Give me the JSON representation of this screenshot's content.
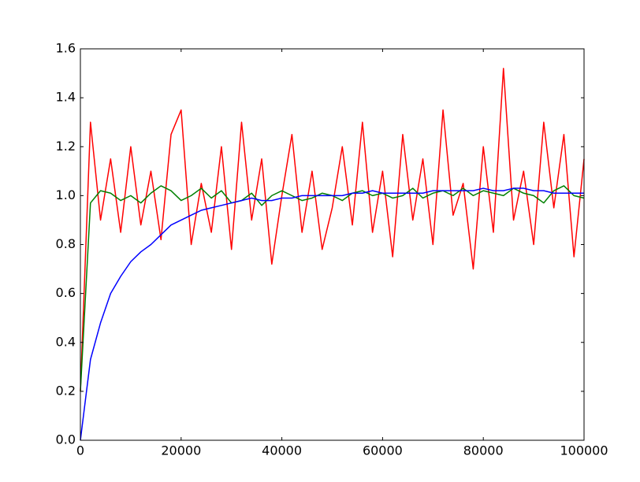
{
  "chart_data": {
    "type": "line",
    "x": [
      0,
      2000,
      4000,
      6000,
      8000,
      10000,
      12000,
      14000,
      16000,
      18000,
      20000,
      22000,
      24000,
      26000,
      28000,
      30000,
      32000,
      34000,
      36000,
      38000,
      40000,
      42000,
      44000,
      46000,
      48000,
      50000,
      52000,
      54000,
      56000,
      58000,
      60000,
      62000,
      64000,
      66000,
      68000,
      70000,
      72000,
      74000,
      76000,
      78000,
      80000,
      82000,
      84000,
      86000,
      88000,
      90000,
      92000,
      94000,
      96000,
      98000,
      100000
    ],
    "series": [
      {
        "color": "#ff0000",
        "values": [
          0.2,
          1.3,
          0.9,
          1.15,
          0.85,
          1.2,
          0.88,
          1.1,
          0.82,
          1.25,
          1.35,
          0.8,
          1.05,
          0.85,
          1.2,
          0.78,
          1.3,
          0.9,
          1.15,
          0.72,
          1.0,
          1.25,
          0.85,
          1.1,
          0.78,
          0.95,
          1.2,
          0.88,
          1.3,
          0.85,
          1.1,
          0.75,
          1.25,
          0.9,
          1.15,
          0.8,
          1.35,
          0.92,
          1.05,
          0.7,
          1.2,
          0.85,
          1.52,
          0.9,
          1.1,
          0.8,
          1.3,
          0.95,
          1.25,
          0.75,
          1.15
        ]
      },
      {
        "color": "#008000",
        "values": [
          0.2,
          0.97,
          1.02,
          1.01,
          0.98,
          1.0,
          0.97,
          1.01,
          1.04,
          1.02,
          0.98,
          1.0,
          1.03,
          0.99,
          1.02,
          0.97,
          0.98,
          1.01,
          0.96,
          1.0,
          1.02,
          1.0,
          0.98,
          0.99,
          1.01,
          1.0,
          0.98,
          1.01,
          1.02,
          1.0,
          1.01,
          0.99,
          1.0,
          1.03,
          0.99,
          1.01,
          1.02,
          1.0,
          1.03,
          1.0,
          1.02,
          1.01,
          1.0,
          1.03,
          1.01,
          1.0,
          0.97,
          1.02,
          1.04,
          1.0,
          0.99
        ]
      },
      {
        "color": "#0000ff",
        "values": [
          0,
          0.33,
          0.48,
          0.6,
          0.67,
          0.73,
          0.77,
          0.8,
          0.84,
          0.88,
          0.9,
          0.92,
          0.94,
          0.95,
          0.96,
          0.97,
          0.98,
          0.99,
          0.98,
          0.98,
          0.99,
          0.99,
          1.0,
          1.0,
          1.0,
          1.0,
          1.0,
          1.01,
          1.01,
          1.02,
          1.01,
          1.01,
          1.01,
          1.01,
          1.01,
          1.02,
          1.02,
          1.02,
          1.02,
          1.02,
          1.03,
          1.02,
          1.02,
          1.03,
          1.03,
          1.02,
          1.02,
          1.01,
          1.01,
          1.01,
          1.01
        ]
      }
    ],
    "xlim": [
      0,
      100000
    ],
    "xticks": [
      0,
      20000,
      40000,
      60000,
      80000,
      100000
    ],
    "ylim": [
      0,
      1.6
    ],
    "yticks": [
      {
        "value": 0,
        "label": "0.0"
      },
      0.2,
      0.4,
      0.6,
      0.8,
      {
        "value": 1,
        "label": "1.0"
      },
      1.2,
      1.4,
      1.6
    ]
  }
}
